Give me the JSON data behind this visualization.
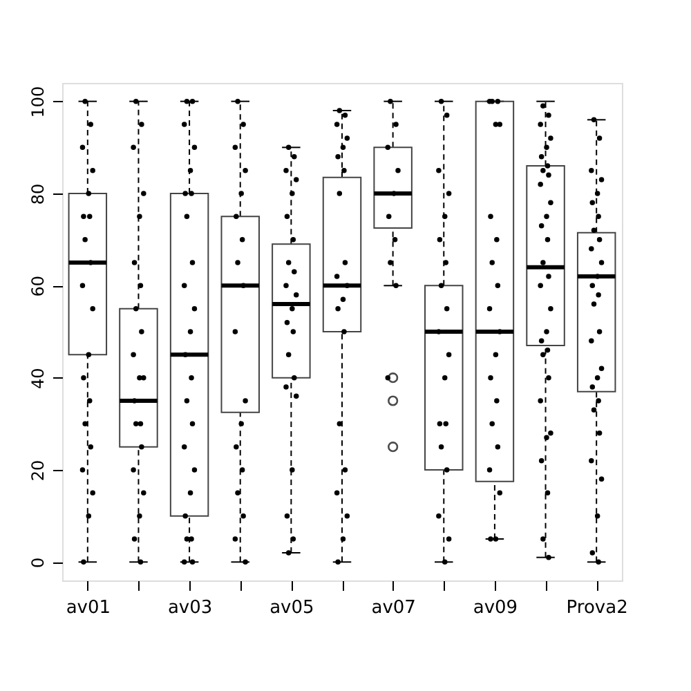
{
  "chart_data": {
    "type": "box",
    "categories": [
      "av01",
      null,
      "av03",
      null,
      "av05",
      null,
      "av07",
      null,
      "av09",
      null,
      "Prova2"
    ],
    "boxes": [
      {
        "low": 0,
        "q1": 45,
        "median": 65,
        "q3": 80,
        "high": 100
      },
      {
        "low": 0,
        "q1": 25,
        "median": 35,
        "q3": 55,
        "high": 100
      },
      {
        "low": 0,
        "q1": 10,
        "median": 45,
        "q3": 80,
        "high": 100
      },
      {
        "low": 0,
        "q1": 32.5,
        "median": 60,
        "q3": 75,
        "high": 100
      },
      {
        "low": 2,
        "q1": 40,
        "median": 56,
        "q3": 69,
        "high": 90
      },
      {
        "low": 0,
        "q1": 50,
        "median": 60,
        "q3": 83.5,
        "high": 98
      },
      {
        "low": 60,
        "q1": 72.5,
        "median": 80,
        "q3": 90,
        "high": 100,
        "outliers": [
          40,
          35,
          25
        ]
      },
      {
        "low": 0,
        "q1": 20,
        "median": 50,
        "q3": 60,
        "high": 100
      },
      {
        "low": 5,
        "q1": 17.5,
        "median": 50,
        "q3": 100,
        "high": 100
      },
      {
        "low": 1,
        "q1": 47,
        "median": 64,
        "q3": 86,
        "high": 100
      },
      {
        "low": 0,
        "q1": 37,
        "median": 62,
        "q3": 71.5,
        "high": 96
      }
    ],
    "series": [
      {
        "type": "scatter",
        "color": "#000000",
        "values": [
          100,
          100,
          100,
          100,
          90,
          98,
          100,
          100,
          100,
          99,
          96
        ]
      },
      {
        "type": "scatter",
        "color": "#000000",
        "values": [
          95,
          95,
          100,
          95,
          88,
          97,
          95,
          97,
          100,
          97,
          92
        ]
      },
      {
        "type": "scatter",
        "color": "#000000",
        "values": [
          90,
          90,
          95,
          90,
          85,
          95,
          90,
          85,
          100,
          95,
          85
        ]
      },
      {
        "type": "scatter",
        "color": "#000000",
        "values": [
          85,
          80,
          90,
          85,
          83,
          92,
          85,
          80,
          95,
          92,
          83
        ]
      },
      {
        "type": "scatter",
        "color": "#000000",
        "values": [
          80,
          75,
          85,
          80,
          80,
          90,
          80,
          75,
          95,
          90,
          80
        ]
      },
      {
        "type": "scatter",
        "color": "#000000",
        "values": [
          75,
          65,
          80,
          75,
          75,
          88,
          75,
          70,
          75,
          88,
          78
        ]
      },
      {
        "type": "scatter",
        "color": "#000000",
        "values": [
          75,
          60,
          80,
          70,
          70,
          85,
          70,
          65,
          70,
          86,
          75
        ]
      },
      {
        "type": "scatter",
        "color": "#000000",
        "values": [
          70,
          55,
          75,
          65,
          65,
          80,
          65,
          60,
          65,
          85,
          72
        ]
      },
      {
        "type": "scatter",
        "color": "#000000",
        "values": [
          65,
          50,
          65,
          60,
          63,
          65,
          60,
          55,
          60,
          84,
          70
        ]
      },
      {
        "type": "scatter",
        "color": "#000000",
        "values": [
          60,
          45,
          60,
          50,
          60,
          62,
          40,
          50,
          55,
          82,
          68
        ]
      },
      {
        "type": "scatter",
        "color": "#000000",
        "values": [
          55,
          40,
          55,
          35,
          58,
          60,
          null,
          45,
          50,
          78,
          65
        ]
      },
      {
        "type": "scatter",
        "color": "#000000",
        "values": [
          45,
          40,
          50,
          30,
          55,
          57,
          null,
          40,
          45,
          75,
          62
        ]
      },
      {
        "type": "scatter",
        "color": "#000000",
        "values": [
          40,
          35,
          45,
          25,
          52,
          55,
          null,
          30,
          40,
          73,
          60
        ]
      },
      {
        "type": "scatter",
        "color": "#000000",
        "values": [
          35,
          30,
          40,
          20,
          50,
          50,
          null,
          30,
          35,
          70,
          58
        ]
      },
      {
        "type": "scatter",
        "color": "#000000",
        "values": [
          30,
          30,
          35,
          15,
          45,
          30,
          null,
          25,
          30,
          65,
          56
        ]
      },
      {
        "type": "scatter",
        "color": "#000000",
        "values": [
          25,
          25,
          30,
          10,
          40,
          20,
          null,
          20,
          25,
          62,
          50
        ]
      },
      {
        "type": "scatter",
        "color": "#000000",
        "values": [
          20,
          20,
          25,
          5,
          38,
          15,
          null,
          10,
          20,
          60,
          48
        ]
      },
      {
        "type": "scatter",
        "color": "#000000",
        "values": [
          15,
          15,
          20,
          0,
          36,
          10,
          null,
          5,
          15,
          55,
          42
        ]
      },
      {
        "type": "scatter",
        "color": "#000000",
        "values": [
          10,
          10,
          15,
          null,
          20,
          5,
          null,
          0,
          5,
          50,
          40
        ]
      },
      {
        "type": "scatter",
        "color": "#000000",
        "values": [
          0,
          5,
          10,
          null,
          10,
          0,
          null,
          null,
          5,
          48,
          38
        ]
      },
      {
        "type": "scatter",
        "color": "#000000",
        "values": [
          null,
          0,
          5,
          null,
          5,
          null,
          null,
          null,
          null,
          46,
          35
        ]
      },
      {
        "type": "scatter",
        "color": "#000000",
        "values": [
          null,
          null,
          5,
          null,
          2,
          null,
          null,
          null,
          null,
          45,
          33
        ]
      },
      {
        "type": "scatter",
        "color": "#000000",
        "values": [
          null,
          null,
          0,
          null,
          null,
          null,
          null,
          null,
          null,
          40,
          28
        ]
      },
      {
        "type": "scatter",
        "color": "#000000",
        "values": [
          null,
          null,
          0,
          null,
          null,
          null,
          null,
          null,
          null,
          35,
          22
        ]
      },
      {
        "type": "scatter",
        "color": "#000000",
        "values": [
          null,
          null,
          null,
          null,
          null,
          null,
          null,
          null,
          null,
          28,
          18
        ]
      },
      {
        "type": "scatter",
        "color": "#000000",
        "values": [
          null,
          null,
          null,
          null,
          null,
          null,
          null,
          null,
          null,
          27,
          10
        ]
      },
      {
        "type": "scatter",
        "color": "#000000",
        "values": [
          null,
          null,
          null,
          null,
          null,
          null,
          null,
          null,
          null,
          22,
          2
        ]
      },
      {
        "type": "scatter",
        "color": "#000000",
        "values": [
          null,
          null,
          null,
          null,
          null,
          null,
          null,
          null,
          null,
          15,
          0
        ]
      },
      {
        "type": "scatter",
        "color": "#000000",
        "values": [
          null,
          null,
          null,
          null,
          null,
          null,
          null,
          null,
          null,
          5,
          null
        ]
      },
      {
        "type": "scatter",
        "color": "#000000",
        "values": [
          null,
          null,
          null,
          null,
          null,
          null,
          null,
          null,
          null,
          1,
          null
        ]
      }
    ],
    "ylim": [
      -4,
      104
    ],
    "yticks": [
      0,
      20,
      40,
      60,
      80,
      100
    ],
    "grid": false,
    "marker": "circle"
  }
}
